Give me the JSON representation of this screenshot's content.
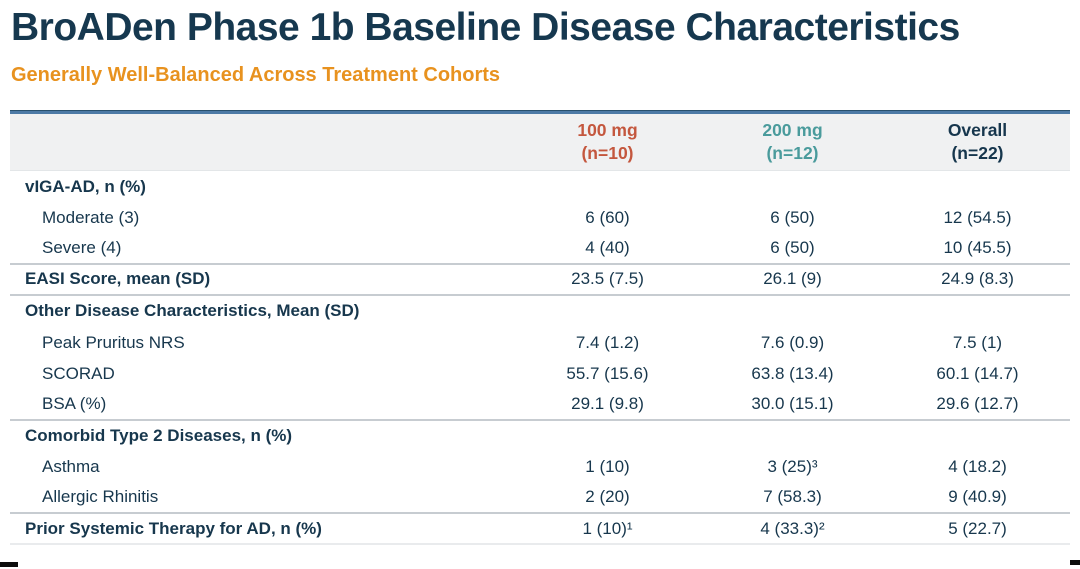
{
  "header": {
    "title": "BroADen Phase 1b Baseline Disease Characteristics",
    "subtitle": "Generally Well-Balanced Across Treatment Cohorts"
  },
  "colors": {
    "title_navy": "#16384f",
    "subtitle_orange": "#e8921f",
    "accent_line_blue": "#4d7aa6",
    "col_100mg_red": "#c4573e",
    "col_200mg_teal": "#4a9b9c",
    "col_overall_navy": "#16364d",
    "header_band_gray": "#f0f1f2"
  },
  "chart_data": {
    "type": "table",
    "columns": [
      {
        "key": "100mg",
        "label": "100 mg",
        "sublabel": "(n=10)",
        "color": "#c4573e"
      },
      {
        "key": "200mg",
        "label": "200 mg",
        "sublabel": "(n=12)",
        "color": "#4a9b9c"
      },
      {
        "key": "overall",
        "label": "Overall",
        "sublabel": "(n=22)",
        "color": "#16364d"
      }
    ],
    "rows": [
      {
        "label": "vIGA-AD, n (%)",
        "style": "section",
        "values": [
          "",
          "",
          ""
        ]
      },
      {
        "label": "Moderate (3)",
        "style": "sub",
        "values": [
          "6 (60)",
          "6 (50)",
          "12 (54.5)"
        ]
      },
      {
        "label": "Severe (4)",
        "style": "sub",
        "values": [
          "4 (40)",
          "6 (50)",
          "10 (45.5)"
        ],
        "divider_after": "strong"
      },
      {
        "label": "EASI Score, mean (SD)",
        "style": "section",
        "values": [
          "23.5 (7.5)",
          "26.1 (9)",
          "24.9 (8.3)"
        ],
        "divider_after": "strong"
      },
      {
        "label": "Other Disease Characteristics, Mean (SD)",
        "style": "section",
        "values": [
          "",
          "",
          ""
        ]
      },
      {
        "label": "Peak Pruritus NRS",
        "style": "sub",
        "values": [
          "7.4 (1.2)",
          "7.6 (0.9)",
          "7.5 (1)"
        ]
      },
      {
        "label": "SCORAD",
        "style": "sub",
        "values": [
          "55.7 (15.6)",
          "63.8 (13.4)",
          "60.1 (14.7)"
        ]
      },
      {
        "label": "BSA (%)",
        "style": "sub",
        "values": [
          "29.1 (9.8)",
          "30.0 (15.1)",
          "29.6 (12.7)"
        ],
        "divider_after": "strong"
      },
      {
        "label": "Comorbid Type 2 Diseases, n (%)",
        "style": "section",
        "values": [
          "",
          "",
          ""
        ]
      },
      {
        "label": "Asthma",
        "style": "sub",
        "values": [
          "1 (10)",
          "3 (25)³",
          "4 (18.2)"
        ]
      },
      {
        "label": "Allergic Rhinitis",
        "style": "sub",
        "values": [
          "2 (20)",
          "7 (58.3)",
          "9 (40.9)"
        ],
        "divider_after": "strong"
      },
      {
        "label": "Prior Systemic Therapy for AD, n (%)",
        "style": "section",
        "values": [
          "1 (10)¹",
          "4 (33.3)²",
          "5 (22.7)"
        ],
        "divider_after": "faint"
      }
    ]
  }
}
